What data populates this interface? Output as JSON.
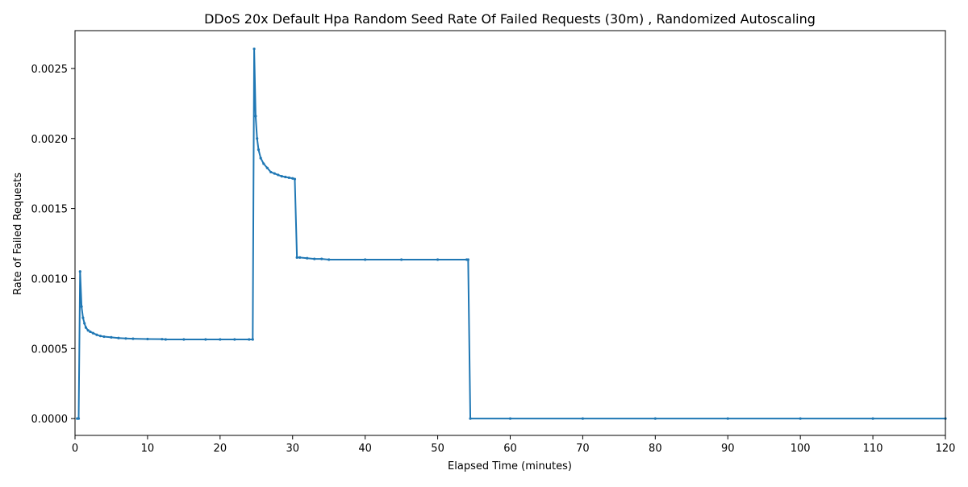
{
  "chart_data": {
    "type": "line",
    "title": "DDoS 20x Default Hpa Random Seed Rate Of Failed Requests (30m) , Randomized Autoscaling",
    "xlabel": "Elapsed Time (minutes)",
    "ylabel": "Rate of Failed Requests",
    "xlim": [
      0,
      120
    ],
    "ylim": [
      -0.00012,
      0.00277
    ],
    "xticks": [
      0,
      10,
      20,
      30,
      40,
      50,
      60,
      70,
      80,
      90,
      100,
      110,
      120
    ],
    "yticks": [
      0.0,
      0.0005,
      0.001,
      0.0015,
      0.002,
      0.0025
    ],
    "ytick_labels": [
      "0.0000",
      "0.0005",
      "0.0010",
      "0.0015",
      "0.0020",
      "0.0025"
    ],
    "grid": false,
    "legend": "none",
    "series": [
      {
        "color": "#1f77b4",
        "x": [
          0.3,
          0.5,
          0.7,
          0.9,
          1.1,
          1.3,
          1.5,
          1.8,
          2.1,
          2.5,
          3.0,
          3.5,
          4.0,
          5.0,
          6.0,
          7.0,
          8.0,
          10.0,
          12.0,
          12.5,
          15.0,
          18.0,
          20.0,
          22.0,
          24.0,
          24.5,
          24.7,
          24.9,
          25.1,
          25.3,
          25.6,
          26.0,
          26.5,
          27.0,
          27.5,
          28.0,
          28.5,
          29.0,
          29.5,
          30.0,
          30.3,
          30.6,
          31.0,
          32.0,
          33.0,
          34.0,
          35.0,
          40.0,
          45.0,
          50.0,
          54.0,
          54.2,
          54.5,
          60.0,
          70.0,
          80.0,
          90.0,
          100.0,
          110.0,
          120.0
        ],
        "y": [
          0.0,
          0.0,
          0.00105,
          0.0008,
          0.00072,
          0.00068,
          0.00065,
          0.00063,
          0.00062,
          0.00061,
          0.000598,
          0.00059,
          0.000585,
          0.00058,
          0.000575,
          0.000572,
          0.00057,
          0.000568,
          0.000567,
          0.000565,
          0.000565,
          0.000565,
          0.000565,
          0.000565,
          0.000565,
          0.000565,
          0.00264,
          0.00216,
          0.002,
          0.00192,
          0.00186,
          0.00182,
          0.00179,
          0.00176,
          0.00175,
          0.00174,
          0.00173,
          0.001725,
          0.00172,
          0.001715,
          0.00171,
          0.00115,
          0.00115,
          0.001145,
          0.00114,
          0.00114,
          0.001135,
          0.001135,
          0.001135,
          0.001135,
          0.001135,
          0.001135,
          0.0,
          0.0,
          0.0,
          0.0,
          0.0,
          0.0,
          0.0,
          0.0
        ]
      }
    ]
  }
}
